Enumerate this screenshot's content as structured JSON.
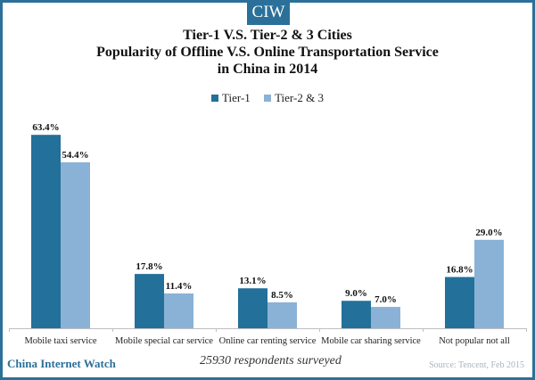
{
  "brand_tab": "CIW",
  "title_lines": [
    "Tier-1 V.S. Tier-2 & 3 Cities",
    "Popularity of Offline V.S. Online Transportation Service",
    "in China in 2014"
  ],
  "colors": {
    "frame": "#2b7099",
    "tier1": "#23709a",
    "tier23": "#8ab2d6"
  },
  "footer": {
    "brand": "China Internet Watch",
    "note": "25930 respondents surveyed",
    "source": "Source: Tencent, Feb 2015"
  },
  "chart_data": {
    "type": "bar",
    "title": "Tier-1 V.S. Tier-2 & 3 Cities Popularity of Offline V.S. Online Transportation Service in China in 2014",
    "xlabel": "",
    "ylabel": "",
    "ylim": [
      0,
      70
    ],
    "grid": false,
    "legend_position": "top-center",
    "categories": [
      "Mobile taxi service",
      "Mobile special car service",
      "Online car renting service",
      "Mobile car sharing service",
      "Not popular not all"
    ],
    "series": [
      {
        "name": "Tier-1",
        "values": [
          63.4,
          17.8,
          13.1,
          9.0,
          16.8
        ],
        "labels": [
          "63.4%",
          "17.8%",
          "13.1%",
          "9.0%",
          "16.8%"
        ]
      },
      {
        "name": "Tier-2 & 3",
        "values": [
          54.4,
          11.4,
          8.5,
          7.0,
          29.0
        ],
        "labels": [
          "54.4%",
          "11.4%",
          "8.5%",
          "7.0%",
          "29.0%"
        ]
      }
    ]
  }
}
